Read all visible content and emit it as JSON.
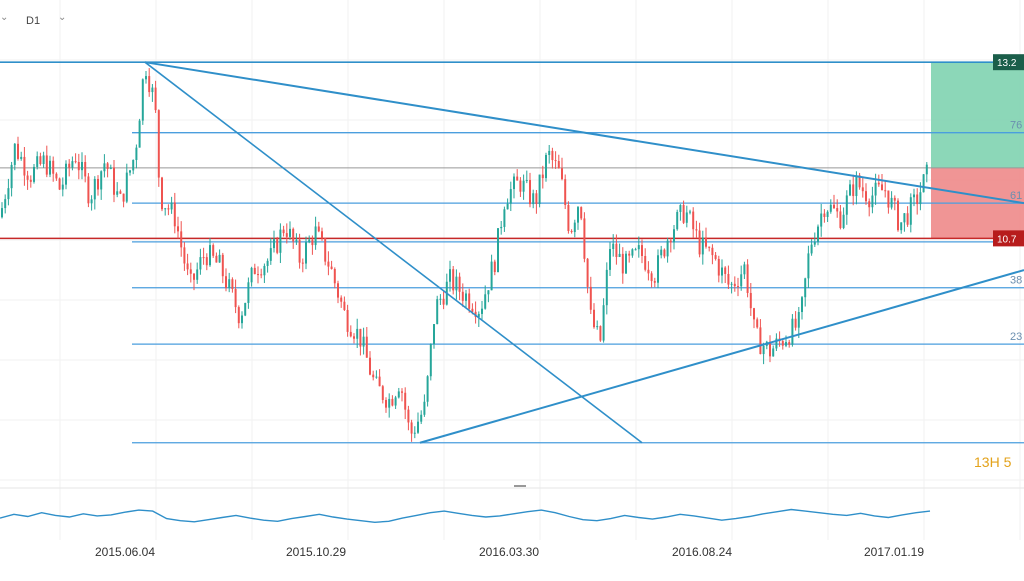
{
  "toolbar": {
    "timeframe": "D1",
    "chevron_icon": "chevron-down-icon"
  },
  "colors": {
    "up": "#26a69a",
    "down": "#ef5350",
    "trendline": "#2f8fc9",
    "fib": "#4a9ede",
    "horizontal": "#999999",
    "resistance": "#c62828",
    "profit_zone": "#7fd3b0",
    "loss_zone": "#ee8a8a",
    "tag_top": "#1b5e4a",
    "tag_red": "#b71c1c",
    "timer": "#e3a21a"
  },
  "price_tags": {
    "top": "13.2",
    "resistance": "10.7"
  },
  "fib_labels": [
    "76",
    "61",
    "38",
    "23"
  ],
  "countdown": {
    "hours": "13",
    "unit": "H",
    "minutes": "5"
  },
  "chart_data": {
    "type": "candlestick",
    "x_tick_labels": [
      "2015.06.04",
      "2015.10.29",
      "2016.03.30",
      "2016.08.24",
      "2017.01.19"
    ],
    "ylim": [
      7.3,
      13.6
    ],
    "levels": [
      {
        "value": 13.2,
        "kind": "top"
      },
      {
        "value": 12.2,
        "kind": "fib"
      },
      {
        "value": 11.7,
        "kind": "horizontal"
      },
      {
        "value": 11.2,
        "kind": "fib"
      },
      {
        "value": 10.7,
        "kind": "resistance"
      },
      {
        "value": 10.65,
        "kind": "fib"
      },
      {
        "value": 10.0,
        "kind": "fib"
      },
      {
        "value": 9.2,
        "kind": "fib"
      },
      {
        "value": 7.8,
        "kind": "fib"
      }
    ],
    "price_path": [
      [
        0,
        11.0
      ],
      [
        15,
        12.0
      ],
      [
        30,
        11.6
      ],
      [
        45,
        11.8
      ],
      [
        60,
        11.4
      ],
      [
        75,
        11.9
      ],
      [
        90,
        11.3
      ],
      [
        105,
        11.8
      ],
      [
        120,
        11.2
      ],
      [
        135,
        11.9
      ],
      [
        145,
        13.2
      ],
      [
        155,
        12.6
      ],
      [
        160,
        11.3
      ],
      [
        175,
        11.0
      ],
      [
        190,
        10.0
      ],
      [
        205,
        10.5
      ],
      [
        220,
        10.3
      ],
      [
        240,
        9.6
      ],
      [
        255,
        10.3
      ],
      [
        270,
        10.4
      ],
      [
        285,
        10.9
      ],
      [
        300,
        10.4
      ],
      [
        315,
        10.8
      ],
      [
        330,
        10.3
      ],
      [
        345,
        9.6
      ],
      [
        360,
        9.3
      ],
      [
        375,
        8.6
      ],
      [
        390,
        8.4
      ],
      [
        400,
        8.7
      ],
      [
        410,
        7.9
      ],
      [
        425,
        8.3
      ],
      [
        435,
        9.7
      ],
      [
        450,
        10.1
      ],
      [
        465,
        9.9
      ],
      [
        480,
        9.7
      ],
      [
        495,
        10.4
      ],
      [
        505,
        11.3
      ],
      [
        520,
        11.5
      ],
      [
        535,
        11.2
      ],
      [
        548,
        11.9
      ],
      [
        560,
        11.6
      ],
      [
        570,
        10.8
      ],
      [
        580,
        11.3
      ],
      [
        590,
        9.6
      ],
      [
        600,
        9.2
      ],
      [
        610,
        10.6
      ],
      [
        625,
        10.3
      ],
      [
        640,
        10.5
      ],
      [
        655,
        10.2
      ],
      [
        670,
        10.8
      ],
      [
        685,
        11.1
      ],
      [
        700,
        10.6
      ],
      [
        715,
        10.4
      ],
      [
        730,
        10.0
      ],
      [
        745,
        10.3
      ],
      [
        755,
        9.3
      ],
      [
        770,
        9.1
      ],
      [
        785,
        9.3
      ],
      [
        800,
        9.5
      ],
      [
        810,
        10.6
      ],
      [
        825,
        11.2
      ],
      [
        840,
        11.0
      ],
      [
        855,
        11.5
      ],
      [
        870,
        11.3
      ],
      [
        885,
        11.4
      ],
      [
        900,
        10.9
      ],
      [
        915,
        11.2
      ],
      [
        930,
        11.7
      ]
    ],
    "oscillator_range": [
      0,
      100
    ],
    "oscillator": [
      45,
      52,
      48,
      55,
      50,
      47,
      53,
      49,
      51,
      56,
      60,
      58,
      44,
      40,
      38,
      42,
      46,
      50,
      45,
      41,
      39,
      44,
      48,
      52,
      47,
      43,
      40,
      37,
      39,
      45,
      50,
      55,
      58,
      54,
      50,
      47,
      49,
      53,
      57,
      60,
      55,
      48,
      42,
      40,
      44,
      50,
      46,
      43,
      47,
      52,
      49,
      45,
      41,
      44,
      48,
      53,
      57,
      61,
      58,
      55,
      52,
      50,
      54,
      49,
      46,
      51,
      55,
      58
    ]
  }
}
